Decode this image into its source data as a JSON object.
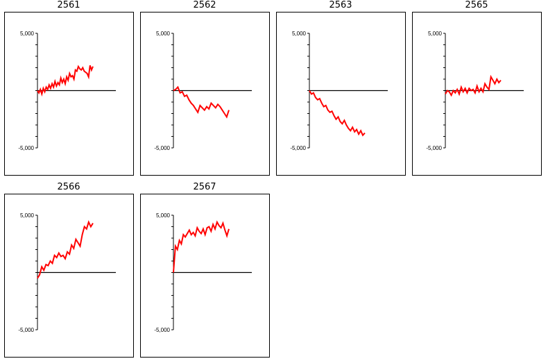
{
  "chart_data": [
    {
      "type": "line",
      "title": "2561",
      "ylim": [
        -5000,
        5000
      ],
      "yticks": [
        5000,
        -5000
      ],
      "ytick_labels": [
        "5,000",
        "-5,000"
      ],
      "series": [
        {
          "color": "#ff0000",
          "values": [
            0,
            -200,
            100,
            -300,
            200,
            -100,
            300,
            100,
            500,
            200,
            600,
            300,
            800,
            400,
            700,
            500,
            1100,
            700,
            1000,
            600,
            1200,
            900,
            1500,
            1200,
            1300,
            1000,
            1800,
            1700,
            2100,
            1900,
            1800,
            2000,
            1700,
            1600,
            1500,
            1200,
            2200,
            1800,
            2100
          ]
        }
      ]
    },
    {
      "type": "line",
      "title": "2562",
      "ylim": [
        -5000,
        5000
      ],
      "yticks": [
        5000,
        -5000
      ],
      "ytick_labels": [
        "5,000",
        "-5,000"
      ],
      "series": [
        {
          "color": "#ff0000",
          "values": [
            0,
            100,
            300,
            -200,
            -100,
            -500,
            -400,
            -800,
            -1100,
            -1300,
            -1600,
            -1900,
            -1300,
            -1500,
            -1700,
            -1400,
            -1600,
            -1100,
            -1300,
            -1500,
            -1200,
            -1400,
            -1700,
            -2000,
            -2300,
            -1700
          ]
        }
      ]
    },
    {
      "type": "line",
      "title": "2563",
      "ylim": [
        -5000,
        5000
      ],
      "yticks": [
        5000,
        -5000
      ],
      "ytick_labels": [
        "5,000",
        "-5,000"
      ],
      "series": [
        {
          "color": "#ff0000",
          "values": [
            0,
            -300,
            -200,
            -600,
            -800,
            -700,
            -1100,
            -1400,
            -1300,
            -1700,
            -1900,
            -1800,
            -2200,
            -2500,
            -2300,
            -2700,
            -2900,
            -2600,
            -3000,
            -3300,
            -3500,
            -3200,
            -3600,
            -3400,
            -3800,
            -3500,
            -3900,
            -3700
          ]
        }
      ]
    },
    {
      "type": "line",
      "title": "2565",
      "ylim": [
        -5000,
        5000
      ],
      "yticks": [
        5000,
        -5000
      ],
      "ytick_labels": [
        "5,000",
        "-5,000"
      ],
      "series": [
        {
          "color": "#ff0000",
          "values": [
            -300,
            0,
            -100,
            -400,
            0,
            -200,
            100,
            -300,
            300,
            -100,
            200,
            -200,
            200,
            0,
            100,
            -200,
            400,
            -100,
            200,
            -100,
            600,
            300,
            100,
            1200,
            900,
            600,
            1000,
            700,
            900
          ]
        }
      ]
    },
    {
      "type": "line",
      "title": "2566",
      "ylim": [
        -5000,
        5000
      ],
      "yticks": [
        5000,
        -5000
      ],
      "ytick_labels": [
        "5,000",
        "-5,000"
      ],
      "series": [
        {
          "color": "#ff0000",
          "values": [
            -500,
            -200,
            500,
            200,
            700,
            600,
            1000,
            800,
            1500,
            1300,
            1700,
            1400,
            1500,
            1200,
            1800,
            1600,
            2400,
            2100,
            2900,
            2600,
            2300,
            3300,
            4000,
            3800,
            4400,
            4000,
            4300
          ]
        }
      ]
    },
    {
      "type": "line",
      "title": "2567",
      "ylim": [
        -5000,
        5000
      ],
      "yticks": [
        5000,
        -5000
      ],
      "ytick_labels": [
        "5,000",
        "-5,000"
      ],
      "series": [
        {
          "color": "#ff0000",
          "values": [
            0,
            2300,
            2000,
            2800,
            2500,
            3300,
            3100,
            3400,
            3700,
            3300,
            3500,
            3200,
            3900,
            3600,
            3400,
            3800,
            3300,
            3900,
            4000,
            3600,
            4200,
            3800,
            4400,
            4100,
            3900,
            4300,
            3700,
            3200,
            3800
          ]
        }
      ]
    }
  ]
}
